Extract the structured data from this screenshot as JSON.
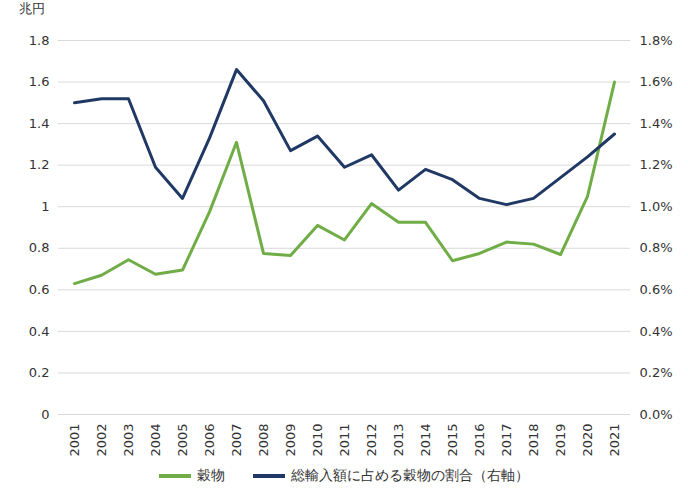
{
  "chart_data": {
    "type": "line",
    "y_label": "兆円",
    "categories": [
      "2001",
      "2002",
      "2003",
      "2004",
      "2005",
      "2006",
      "2007",
      "2008",
      "2009",
      "2010",
      "2011",
      "2012",
      "2013",
      "2014",
      "2015",
      "2016",
      "2017",
      "2018",
      "2019",
      "2020",
      "2021"
    ],
    "series": [
      {
        "name": "穀物",
        "color": "#70ad47",
        "axis": "y",
        "values": [
          0.63,
          0.67,
          0.745,
          0.675,
          0.695,
          0.975,
          1.31,
          0.775,
          0.765,
          0.91,
          0.84,
          1.015,
          0.925,
          0.925,
          0.74,
          0.775,
          0.83,
          0.82,
          0.77,
          1.05,
          1.6
        ]
      },
      {
        "name": "総輸入額に占める穀物の割合（右軸）",
        "color": "#203864",
        "axis": "y2",
        "values": [
          1.5,
          1.52,
          1.52,
          1.19,
          1.04,
          1.33,
          1.66,
          1.51,
          1.27,
          1.34,
          1.19,
          1.25,
          1.08,
          1.18,
          1.13,
          1.04,
          1.01,
          1.04,
          1.14,
          1.24,
          1.35
        ]
      }
    ],
    "ylim": [
      0,
      1.8
    ],
    "yticks": [
      0,
      0.2,
      0.4,
      0.6,
      0.8,
      1,
      1.2,
      1.4,
      1.6,
      1.8
    ],
    "y2lim": [
      0,
      1.8
    ],
    "y2ticks": [
      {
        "value": 0,
        "label": "0.0%"
      },
      {
        "value": 0.2,
        "label": "0.2%"
      },
      {
        "value": 0.4,
        "label": "0.4%"
      },
      {
        "value": 0.6,
        "label": "0.6%"
      },
      {
        "value": 0.8,
        "label": "0.8%"
      },
      {
        "value": 1.0,
        "label": "1.0%"
      },
      {
        "value": 1.2,
        "label": "1.2%"
      },
      {
        "value": 1.4,
        "label": "1.4%"
      },
      {
        "value": 1.6,
        "label": "1.6%"
      },
      {
        "value": 1.8,
        "label": "1.8%"
      }
    ],
    "grid": true,
    "legend": "bottom"
  }
}
